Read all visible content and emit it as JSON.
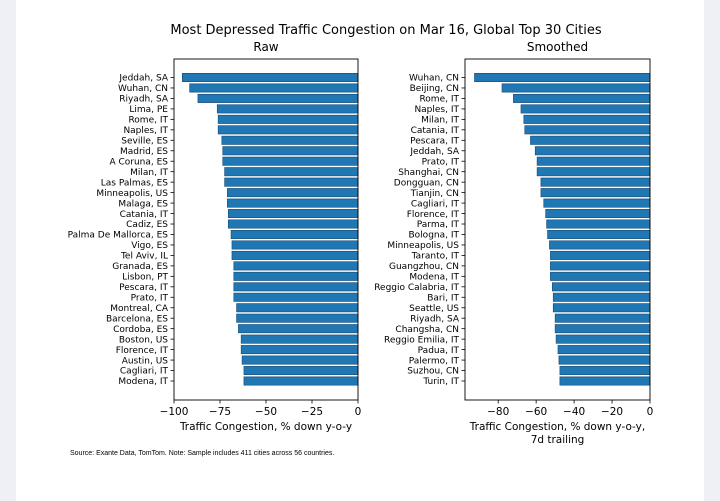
{
  "chart_data": {
    "title": "Most Depressed Traffic Congestion on Mar 16, Global Top 30 Cities",
    "footnote": "Source: Exante Data, TomTom.   Note: Sample includes 411 cities across 56 countries.",
    "panels": [
      {
        "type": "bar",
        "orientation": "horizontal",
        "title": "Raw",
        "xlabel": "Traffic Congestion, % down y-o-y",
        "ylabel": "",
        "xlim": [
          -100,
          0
        ],
        "xticks": [
          -100,
          -75,
          -50,
          -25,
          0
        ],
        "xtick_labels": [
          "−100",
          "−75",
          "−50",
          "−25",
          "0"
        ],
        "grid": false,
        "bar_color": "#1f77b4",
        "categories": [
          "Jeddah, SA",
          "Wuhan, CN",
          "Riyadh, SA",
          "Lima, PE",
          "Rome, IT",
          "Naples, IT",
          "Seville, ES",
          "Madrid, ES",
          "A Coruna, ES",
          "Milan, IT",
          "Las Palmas, ES",
          "Minneapolis, US",
          "Malaga, ES",
          "Catania, IT",
          "Cadiz, ES",
          "Palma De Mallorca, ES",
          "Vigo, ES",
          "Tel Aviv, IL",
          "Granada, ES",
          "Lisbon, PT",
          "Pescara, IT",
          "Prato, IT",
          "Montreal, CA",
          "Barcelona, ES",
          "Cordoba, ES",
          "Boston, US",
          "Florence, IT",
          "Austin, US",
          "Cagliari, IT",
          "Modena, IT"
        ],
        "values": [
          -95.5,
          -91.5,
          -87,
          -76.5,
          -76,
          -76,
          -74,
          -73.5,
          -73.5,
          -72.5,
          -72.5,
          -71,
          -71,
          -70.5,
          -70.5,
          -69,
          -68.5,
          -68.5,
          -67.5,
          -67.5,
          -67.5,
          -67.5,
          -66,
          -66,
          -65,
          -63.5,
          -63.5,
          -63,
          -62,
          -62
        ]
      },
      {
        "type": "bar",
        "orientation": "horizontal",
        "title": "Smoothed",
        "xlabel": "Traffic Congestion, % down y-o-y,",
        "xlabel_line2": "7d trailing",
        "ylabel": "",
        "xlim": [
          -97.5,
          0
        ],
        "xticks": [
          -80,
          -60,
          -40,
          -20,
          0
        ],
        "xtick_labels": [
          "−80",
          "−60",
          "−40",
          "−20",
          "0"
        ],
        "grid": false,
        "bar_color": "#1f77b4",
        "categories": [
          "Wuhan, CN",
          "Beijing, CN",
          "Rome, IT",
          "Naples, IT",
          "Milan, IT",
          "Catania, IT",
          "Pescara, IT",
          "Jeddah, SA",
          "Prato, IT",
          "Shanghai, CN",
          "Dongguan, CN",
          "Tianjin, CN",
          "Cagliari, IT",
          "Florence, IT",
          "Parma, IT",
          "Bologna, IT",
          "Minneapolis, US",
          "Taranto, IT",
          "Guangzhou, CN",
          "Modena, IT",
          "Reggio Calabria, IT",
          "Bari, IT",
          "Seattle, US",
          "Riyadh, SA",
          "Changsha, CN",
          "Reggio Emilia, IT",
          "Padua, IT",
          "Palermo, IT",
          "Suzhou, CN",
          "Turin, IT"
        ],
        "values": [
          -92.5,
          -78,
          -72,
          -68,
          -66.5,
          -66,
          -63,
          -60.5,
          -59.5,
          -59.5,
          -57.5,
          -57.5,
          -56,
          -55,
          -54.5,
          -54,
          -53,
          -52.5,
          -52.5,
          -52.5,
          -51.5,
          -51,
          -51,
          -50,
          -50,
          -49.5,
          -48.5,
          -48,
          -47.5,
          -47.5
        ]
      }
    ]
  }
}
